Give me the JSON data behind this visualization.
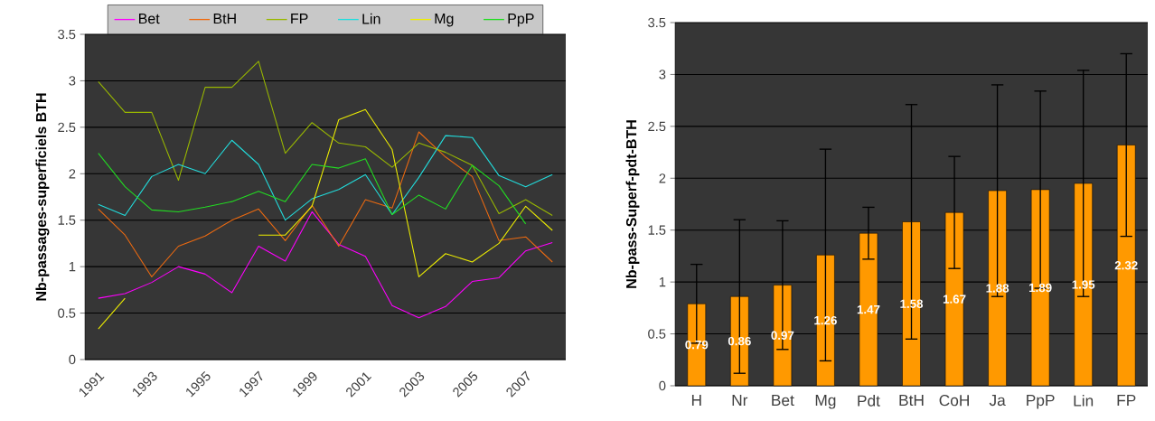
{
  "chart_data": [
    {
      "type": "line",
      "ylabel": "Nb-passages-superficiels BTH",
      "categories": [
        "1991",
        null,
        "1993",
        null,
        "1995",
        null,
        "1997",
        null,
        "1999",
        null,
        "2001",
        null,
        "2003",
        null,
        "2005",
        null,
        "2007",
        null
      ],
      "series": [
        {
          "name": "Bet",
          "color": "#ff00ff",
          "values": [
            0.66,
            0.71,
            0.83,
            1.0,
            0.92,
            0.72,
            1.22,
            1.06,
            1.59,
            1.24,
            1.11,
            0.58,
            0.45,
            0.57,
            0.84,
            0.88,
            1.17,
            1.26
          ]
        },
        {
          "name": "BtH",
          "color": "#ee6a10",
          "values": [
            1.62,
            1.34,
            0.89,
            1.22,
            1.33,
            1.5,
            1.62,
            1.28,
            1.66,
            1.22,
            1.72,
            1.63,
            2.45,
            2.18,
            1.97,
            1.28,
            1.32,
            1.05
          ]
        },
        {
          "name": "FP",
          "color": "#99b800",
          "values": [
            2.99,
            2.66,
            2.66,
            1.93,
            2.93,
            2.93,
            3.21,
            2.22,
            2.55,
            2.33,
            2.29,
            2.07,
            2.33,
            2.23,
            2.09,
            1.57,
            1.72,
            1.55
          ]
        },
        {
          "name": "Lin",
          "color": "#22dddd",
          "values": [
            1.67,
            1.55,
            1.97,
            2.1,
            2.0,
            2.36,
            2.1,
            1.5,
            1.73,
            1.83,
            1.99,
            1.56,
            1.96,
            2.41,
            2.39,
            1.98,
            1.86,
            1.99
          ]
        },
        {
          "name": "Mg",
          "color": "#eeee00",
          "values": [
            0.33,
            0.66,
            null,
            null,
            null,
            null,
            1.34,
            1.34,
            1.65,
            2.58,
            2.69,
            2.26,
            0.89,
            1.14,
            1.05,
            1.25,
            1.65,
            1.39
          ]
        },
        {
          "name": "PpP",
          "color": "#22dd22",
          "values": [
            2.22,
            1.86,
            1.61,
            1.59,
            1.64,
            1.7,
            1.81,
            1.7,
            2.1,
            2.06,
            2.16,
            1.56,
            1.77,
            1.62,
            2.09,
            1.87,
            1.46,
            null
          ]
        }
      ],
      "ylim": [
        0,
        3.5
      ],
      "yticks": [
        0,
        0.5,
        1,
        1.5,
        2,
        2.5,
        3,
        3.5
      ],
      "grid": "y",
      "legend": "top",
      "marker": "none"
    },
    {
      "type": "bar",
      "ylabel": "Nb-pass-Superf-pdt-BTH",
      "categories": [
        "H",
        "Nr",
        "Bet",
        "Mg",
        "Pdt",
        "BtH",
        "CoH",
        "Ja",
        "PpP",
        "Lin",
        "FP"
      ],
      "values": [
        0.79,
        0.86,
        0.97,
        1.26,
        1.47,
        1.58,
        1.67,
        1.88,
        1.89,
        1.95,
        2.32
      ],
      "errors": [
        0.38,
        0.74,
        0.62,
        1.02,
        0.25,
        1.13,
        0.54,
        1.02,
        0.95,
        1.09,
        0.88
      ],
      "color": "#ff9900",
      "ylim": [
        0,
        3.5
      ],
      "yticks": [
        0,
        0.5,
        1,
        1.5,
        2,
        2.5,
        3,
        3.5
      ],
      "grid": "y",
      "data_labels": true
    }
  ]
}
